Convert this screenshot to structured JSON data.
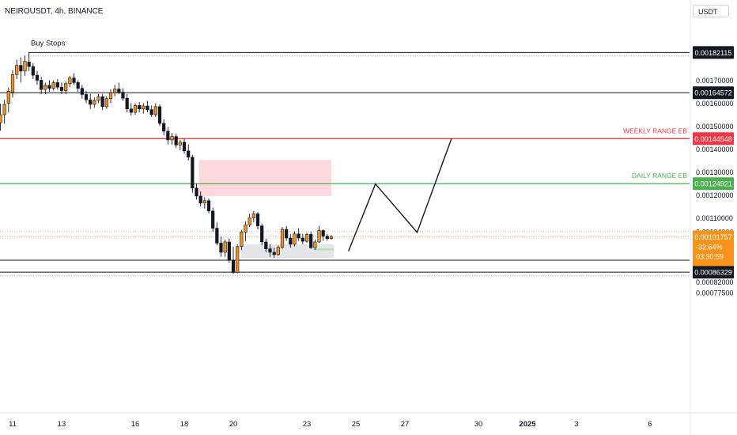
{
  "header": {
    "symbol": "NEIROUSDT, 4h, BINANCE",
    "currency": "USDT"
  },
  "colors": {
    "up": "#f7931a",
    "down": "#131722",
    "red_line": "#f23645",
    "green_line": "#4caf50",
    "current": "#f7931a",
    "red_zone": "#fdd8dc",
    "grey_zone": "#e5e6ea",
    "green_box": "#b9e2bd"
  },
  "chart_data": {
    "type": "candlestick",
    "ylim": [
      0.00075,
      0.00191
    ],
    "price_ticks": [
      "0.00077500",
      "0.00082000",
      "0.00104000",
      "0.00110000",
      "0.00120000",
      "0.00130000",
      "0.00140000",
      "0.00150000",
      "0.00160000",
      "0.00170000"
    ],
    "x_ticks": [
      {
        "label": "11",
        "day": 11
      },
      {
        "label": "13",
        "day": 13
      },
      {
        "label": "16",
        "day": 16
      },
      {
        "label": "18",
        "day": 18
      },
      {
        "label": "20",
        "day": 20
      },
      {
        "label": "23",
        "day": 23
      },
      {
        "label": "25",
        "day": 25
      },
      {
        "label": "27",
        "day": 27
      },
      {
        "label": "30",
        "day": 30
      },
      {
        "label": "2025",
        "day": 32,
        "bold": true
      },
      {
        "label": "3",
        "day": 34
      },
      {
        "label": "6",
        "day": 37
      }
    ],
    "levels": [
      {
        "price": 0.00182115,
        "label": "0.00182115",
        "style": "black",
        "dotted_offset": 5e-06
      },
      {
        "price": 0.00164572,
        "label": "0.00164572",
        "style": "black"
      },
      {
        "price": 0.00144548,
        "label": "0.00144548",
        "style": "red",
        "annotation": "WEEKLY RANGE EB"
      },
      {
        "price": 0.00124921,
        "label": "0.00124921",
        "style": "green",
        "annotation": "DAILY RANGE EB"
      },
      {
        "price": 0.00091558,
        "label": "0.00091558",
        "style": "black"
      },
      {
        "price": 0.00086329,
        "label": "0.00086329",
        "style": "black",
        "dotted_offset": 5e-06
      }
    ],
    "annotations": [
      {
        "text": "Buy Stops",
        "day": 11.8,
        "price": 0.001838
      }
    ],
    "current_price": {
      "price": "0.00101757",
      "change": "-32.64%",
      "countdown": "03:30:59",
      "value": 0.00101757
    },
    "high_dotted": 0.00104,
    "red_zone": {
      "day_from": 18.6,
      "day_to": 24.0,
      "price_top": 0.001352,
      "price_bottom": 0.001195
    },
    "grey_zone": {
      "day_from": 20.3,
      "day_to": 24.1,
      "price_top": 0.000985,
      "price_bottom": 0.000926
    },
    "green_box": {
      "day_from": 23.3,
      "day_to": 24.1,
      "price_top": 0.000967,
      "price_bottom": 0.000958
    },
    "projection": [
      {
        "day": 24.7,
        "price": 0.000955
      },
      {
        "day": 25.8,
        "price": 0.001248
      },
      {
        "day": 27.5,
        "price": 0.001037
      },
      {
        "day": 28.9,
        "price": 0.001445
      }
    ],
    "candles": [
      {
        "day": 10.5,
        "o": 0.001515,
        "h": 0.001598,
        "l": 0.00148,
        "c": 0.00155
      },
      {
        "day": 10.667,
        "o": 0.00155,
        "h": 0.001615,
        "l": 0.00151,
        "c": 0.001595
      },
      {
        "day": 10.833,
        "o": 0.0016,
        "h": 0.001668,
        "l": 0.00156,
        "c": 0.001652
      },
      {
        "day": 11.0,
        "o": 0.001648,
        "h": 0.001745,
        "l": 0.001625,
        "c": 0.001725
      },
      {
        "day": 11.167,
        "o": 0.001725,
        "h": 0.00179,
        "l": 0.001705,
        "c": 0.001765
      },
      {
        "day": 11.333,
        "o": 0.001765,
        "h": 0.0018,
        "l": 0.00169,
        "c": 0.00174
      },
      {
        "day": 11.5,
        "o": 0.00174,
        "h": 0.001808,
        "l": 0.00172,
        "c": 0.001782
      },
      {
        "day": 11.667,
        "o": 0.00178,
        "h": 0.00182,
        "l": 0.00174,
        "c": 0.00176
      },
      {
        "day": 11.833,
        "o": 0.00176,
        "h": 0.001775,
        "l": 0.001705,
        "c": 0.001722
      },
      {
        "day": 12.0,
        "o": 0.001722,
        "h": 0.00174,
        "l": 0.00168,
        "c": 0.0017
      },
      {
        "day": 12.167,
        "o": 0.0017,
        "h": 0.001715,
        "l": 0.00164,
        "c": 0.00166
      },
      {
        "day": 12.333,
        "o": 0.00166,
        "h": 0.00169,
        "l": 0.00164,
        "c": 0.001678
      },
      {
        "day": 12.5,
        "o": 0.001678,
        "h": 0.0017,
        "l": 0.00165,
        "c": 0.001665
      },
      {
        "day": 12.667,
        "o": 0.001665,
        "h": 0.0017,
        "l": 0.001655,
        "c": 0.00169
      },
      {
        "day": 12.833,
        "o": 0.00169,
        "h": 0.001705,
        "l": 0.00166,
        "c": 0.00167
      },
      {
        "day": 13.0,
        "o": 0.00167,
        "h": 0.00169,
        "l": 0.00164,
        "c": 0.001655
      },
      {
        "day": 13.167,
        "o": 0.001655,
        "h": 0.001695,
        "l": 0.00164,
        "c": 0.001685
      },
      {
        "day": 13.333,
        "o": 0.001685,
        "h": 0.00172,
        "l": 0.00167,
        "c": 0.00171
      },
      {
        "day": 13.5,
        "o": 0.00171,
        "h": 0.00173,
        "l": 0.00168,
        "c": 0.00169
      },
      {
        "day": 13.667,
        "o": 0.00169,
        "h": 0.0017,
        "l": 0.00165,
        "c": 0.001665
      },
      {
        "day": 13.833,
        "o": 0.001665,
        "h": 0.00168,
        "l": 0.00162,
        "c": 0.001638
      },
      {
        "day": 14.0,
        "o": 0.001638,
        "h": 0.001655,
        "l": 0.0016,
        "c": 0.001615
      },
      {
        "day": 14.167,
        "o": 0.001615,
        "h": 0.00164,
        "l": 0.001575,
        "c": 0.001595
      },
      {
        "day": 14.333,
        "o": 0.001595,
        "h": 0.001625,
        "l": 0.00158,
        "c": 0.001612
      },
      {
        "day": 14.5,
        "o": 0.001612,
        "h": 0.00164,
        "l": 0.0016,
        "c": 0.001628
      },
      {
        "day": 14.667,
        "o": 0.001628,
        "h": 0.00164,
        "l": 0.00157,
        "c": 0.001585
      },
      {
        "day": 14.833,
        "o": 0.001585,
        "h": 0.00163,
        "l": 0.001575,
        "c": 0.00162
      },
      {
        "day": 15.0,
        "o": 0.00162,
        "h": 0.00166,
        "l": 0.0016,
        "c": 0.001645
      },
      {
        "day": 15.167,
        "o": 0.001645,
        "h": 0.00168,
        "l": 0.00163,
        "c": 0.001662
      },
      {
        "day": 15.333,
        "o": 0.001662,
        "h": 0.00169,
        "l": 0.00164,
        "c": 0.001648
      },
      {
        "day": 15.5,
        "o": 0.001648,
        "h": 0.001665,
        "l": 0.00161,
        "c": 0.001622
      },
      {
        "day": 15.667,
        "o": 0.001622,
        "h": 0.00164,
        "l": 0.00156,
        "c": 0.001575
      },
      {
        "day": 15.833,
        "o": 0.001575,
        "h": 0.0016,
        "l": 0.001545,
        "c": 0.00156
      },
      {
        "day": 16.0,
        "o": 0.00156,
        "h": 0.0016,
        "l": 0.00155,
        "c": 0.00159
      },
      {
        "day": 16.167,
        "o": 0.00159,
        "h": 0.001605,
        "l": 0.00156,
        "c": 0.001575
      },
      {
        "day": 16.333,
        "o": 0.001575,
        "h": 0.0016,
        "l": 0.001555,
        "c": 0.001588
      },
      {
        "day": 16.5,
        "o": 0.001588,
        "h": 0.00161,
        "l": 0.00156,
        "c": 0.001572
      },
      {
        "day": 16.667,
        "o": 0.001572,
        "h": 0.00159,
        "l": 0.00154,
        "c": 0.00155
      },
      {
        "day": 16.833,
        "o": 0.00155,
        "h": 0.0016,
        "l": 0.00154,
        "c": 0.001585
      },
      {
        "day": 17.0,
        "o": 0.001585,
        "h": 0.001595,
        "l": 0.0015,
        "c": 0.001512
      },
      {
        "day": 17.167,
        "o": 0.001512,
        "h": 0.00153,
        "l": 0.00146,
        "c": 0.001478
      },
      {
        "day": 17.333,
        "o": 0.001478,
        "h": 0.001495,
        "l": 0.00142,
        "c": 0.00144
      },
      {
        "day": 17.5,
        "o": 0.00144,
        "h": 0.00147,
        "l": 0.00142,
        "c": 0.001455
      },
      {
        "day": 17.667,
        "o": 0.001455,
        "h": 0.001468,
        "l": 0.001405,
        "c": 0.001418
      },
      {
        "day": 17.833,
        "o": 0.001418,
        "h": 0.00144,
        "l": 0.001395,
        "c": 0.00143
      },
      {
        "day": 18.0,
        "o": 0.00143,
        "h": 0.001445,
        "l": 0.00138,
        "c": 0.001392
      },
      {
        "day": 18.167,
        "o": 0.001392,
        "h": 0.00142,
        "l": 0.00135,
        "c": 0.001365
      },
      {
        "day": 18.333,
        "o": 0.001365,
        "h": 0.001375,
        "l": 0.00121,
        "c": 0.00123
      },
      {
        "day": 18.5,
        "o": 0.00123,
        "h": 0.00125,
        "l": 0.00118,
        "c": 0.001195
      },
      {
        "day": 18.667,
        "o": 0.001195,
        "h": 0.001215,
        "l": 0.00115,
        "c": 0.001165
      },
      {
        "day": 18.833,
        "o": 0.001165,
        "h": 0.00119,
        "l": 0.00114,
        "c": 0.001175
      },
      {
        "day": 19.0,
        "o": 0.001175,
        "h": 0.001185,
        "l": 0.00112,
        "c": 0.00113
      },
      {
        "day": 19.167,
        "o": 0.00113,
        "h": 0.001145,
        "l": 0.00104,
        "c": 0.001055
      },
      {
        "day": 19.333,
        "o": 0.001055,
        "h": 0.00108,
        "l": 0.00098,
        "c": 0.00099
      },
      {
        "day": 19.5,
        "o": 0.00099,
        "h": 0.00102,
        "l": 0.00093,
        "c": 0.00095
      },
      {
        "day": 19.667,
        "o": 0.00095,
        "h": 0.001005,
        "l": 0.00093,
        "c": 0.000995
      },
      {
        "day": 19.833,
        "o": 0.000995,
        "h": 0.00101,
        "l": 0.000905,
        "c": 0.000915
      },
      {
        "day": 20.0,
        "o": 0.000915,
        "h": 0.000975,
        "l": 0.000855,
        "c": 0.000862
      },
      {
        "day": 20.167,
        "o": 0.000862,
        "h": 0.000985,
        "l": 0.000858,
        "c": 0.000975
      },
      {
        "day": 20.333,
        "o": 0.000975,
        "h": 0.001048,
        "l": 0.00096,
        "c": 0.001038
      },
      {
        "day": 20.5,
        "o": 0.001038,
        "h": 0.001085,
        "l": 0.001,
        "c": 0.00107
      },
      {
        "day": 20.667,
        "o": 0.00107,
        "h": 0.001118,
        "l": 0.00106,
        "c": 0.0011
      },
      {
        "day": 20.833,
        "o": 0.0011,
        "h": 0.00113,
        "l": 0.00108,
        "c": 0.001118
      },
      {
        "day": 21.0,
        "o": 0.001118,
        "h": 0.001125,
        "l": 0.00105,
        "c": 0.001065
      },
      {
        "day": 21.167,
        "o": 0.001065,
        "h": 0.001075,
        "l": 0.00098,
        "c": 0.000995
      },
      {
        "day": 21.333,
        "o": 0.000995,
        "h": 0.00101,
        "l": 0.00095,
        "c": 0.000965
      },
      {
        "day": 21.5,
        "o": 0.000965,
        "h": 0.000985,
        "l": 0.00093,
        "c": 0.00095
      },
      {
        "day": 21.667,
        "o": 0.00095,
        "h": 0.00097,
        "l": 0.000925,
        "c": 0.00094
      },
      {
        "day": 21.833,
        "o": 0.00094,
        "h": 0.00098,
        "l": 0.000935,
        "c": 0.000972
      },
      {
        "day": 22.0,
        "o": 0.000972,
        "h": 0.00106,
        "l": 0.000965,
        "c": 0.00105
      },
      {
        "day": 22.167,
        "o": 0.00105,
        "h": 0.001065,
        "l": 0.001,
        "c": 0.001012
      },
      {
        "day": 22.333,
        "o": 0.001012,
        "h": 0.00103,
        "l": 0.00097,
        "c": 0.000985
      },
      {
        "day": 22.5,
        "o": 0.000985,
        "h": 0.00104,
        "l": 0.000975,
        "c": 0.00103
      },
      {
        "day": 22.667,
        "o": 0.00103,
        "h": 0.001055,
        "l": 0.001,
        "c": 0.001012
      },
      {
        "day": 22.833,
        "o": 0.001012,
        "h": 0.00103,
        "l": 0.000985,
        "c": 0.000998
      },
      {
        "day": 23.0,
        "o": 0.000998,
        "h": 0.001035,
        "l": 0.000992,
        "c": 0.001028
      },
      {
        "day": 23.167,
        "o": 0.001028,
        "h": 0.00104,
        "l": 0.000965,
        "c": 0.00097
      },
      {
        "day": 23.333,
        "o": 0.00097,
        "h": 0.001005,
        "l": 0.00096,
        "c": 0.000995
      },
      {
        "day": 23.5,
        "o": 0.000995,
        "h": 0.001065,
        "l": 0.00099,
        "c": 0.001045
      },
      {
        "day": 23.667,
        "o": 0.001045,
        "h": 0.00105,
        "l": 0.001,
        "c": 0.00102
      },
      {
        "day": 23.833,
        "o": 0.00102,
        "h": 0.00103,
        "l": 0.001,
        "c": 0.00101
      },
      {
        "day": 24.0,
        "o": 0.00101,
        "h": 0.001025,
        "l": 0.001005,
        "c": 0.001018
      }
    ]
  }
}
